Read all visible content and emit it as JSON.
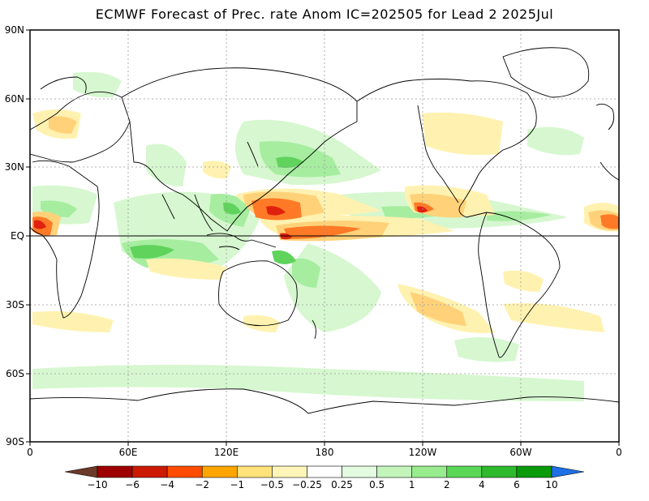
{
  "title": "ECMWF Forecast of Prec. rate Anom IC=202505 for Lead 2 2025Jul",
  "y_axis_labels": [
    "90N",
    "60N",
    "30N",
    "EQ",
    "30S",
    "60S",
    "90S"
  ],
  "x_axis_labels": [
    "0",
    "60E",
    "120E",
    "180",
    "120W",
    "60W",
    "0"
  ],
  "colorbar": {
    "labels": [
      "-10",
      "-6",
      "-4",
      "-2",
      "-1",
      "-0.5",
      "-0.25",
      "0.25",
      "0.5",
      "1",
      "2",
      "4",
      "6",
      "10"
    ],
    "colors": [
      "#6b3a2a",
      "#9e0000",
      "#cc1a00",
      "#ff4c00",
      "#ffa500",
      "#ffe27a",
      "#fff5b8",
      "#ffffff",
      "#e3fbe0",
      "#c3f5bb",
      "#98ec8e",
      "#5ad757",
      "#2fba2d",
      "#0a9a0a",
      "#1f6fe5"
    ]
  },
  "colors": {
    "wet_light": "#d6f7cf",
    "wet_mid": "#a6eda0",
    "wet_strong": "#5fd35c",
    "dry_light": "#fff2b0",
    "dry_mid": "#ffd27a",
    "dry_strong": "#ff7a26",
    "dry_extreme": "#e0200e"
  }
}
